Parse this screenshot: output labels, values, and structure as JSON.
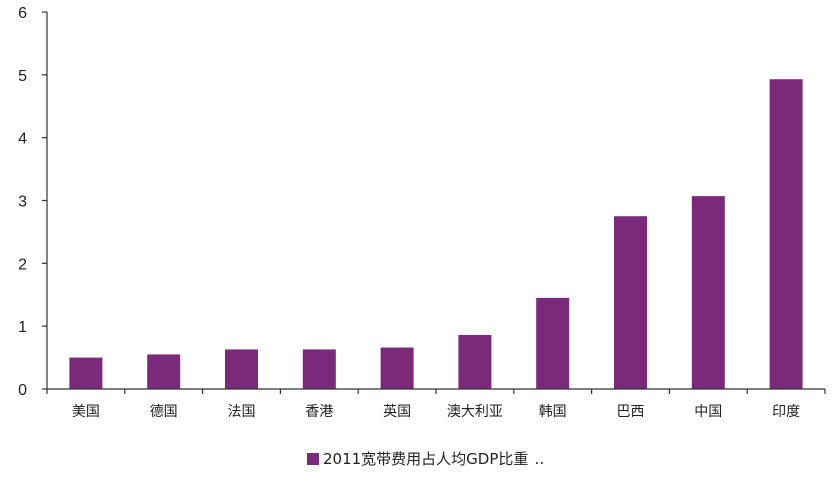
{
  "chart_data": {
    "type": "bar",
    "categories": [
      "美国",
      "德国",
      "法国",
      "香港",
      "英国",
      "澳大利亚",
      "韩国",
      "巴西",
      "中国",
      "印度"
    ],
    "series": [
      {
        "name": "2011宽带费用占人均GDP比重",
        "values": [
          0.5,
          0.55,
          0.63,
          0.63,
          0.66,
          0.86,
          1.45,
          2.75,
          3.07,
          4.93
        ]
      }
    ],
    "yticks": [
      "0",
      "1",
      "2",
      "3",
      "4",
      "5",
      "6"
    ],
    "ylim": [
      0,
      6
    ],
    "grid": false,
    "legend": "bottom-center",
    "legend_suffix": "‥",
    "colors": {
      "bar": "#7B2A7B",
      "axis": "#333333"
    }
  }
}
